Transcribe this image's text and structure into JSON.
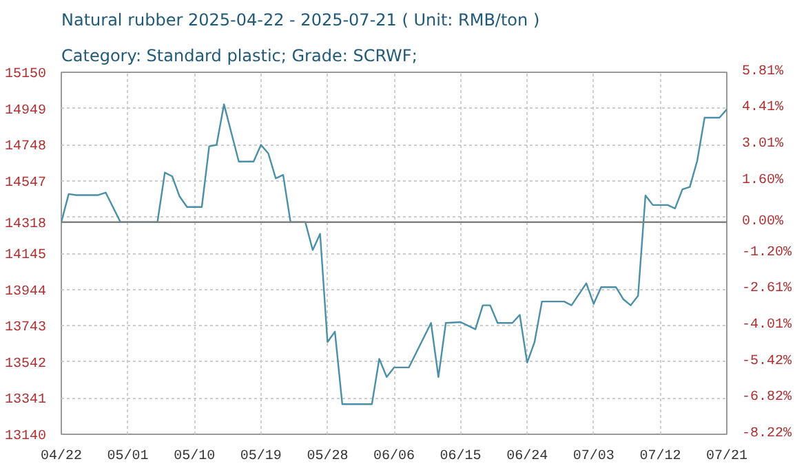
{
  "chart_data": {
    "type": "line",
    "title": "Natural rubber 2025-04-22 - 2025-07-21    ( Unit: RMB/ton )",
    "subtitle": "Category: Standard plastic; Grade: SCRWF;",
    "x": [
      "2025-04-22",
      "2025-04-23",
      "2025-04-24",
      "2025-04-27",
      "2025-04-28",
      "2025-04-30",
      "2025-05-05",
      "2025-05-06",
      "2025-05-07",
      "2025-05-08",
      "2025-05-09",
      "2025-05-11",
      "2025-05-12",
      "2025-05-13",
      "2025-05-14",
      "2025-05-16",
      "2025-05-18",
      "2025-05-19",
      "2025-05-20",
      "2025-05-21",
      "2025-05-22",
      "2025-05-23",
      "2025-05-25",
      "2025-05-26",
      "2025-05-27",
      "2025-05-28",
      "2025-05-29",
      "2025-05-30",
      "2025-06-03",
      "2025-06-04",
      "2025-06-05",
      "2025-06-06",
      "2025-06-08",
      "2025-06-11",
      "2025-06-12",
      "2025-06-13",
      "2025-06-15",
      "2025-06-17",
      "2025-06-18",
      "2025-06-19",
      "2025-06-20",
      "2025-06-22",
      "2025-06-23",
      "2025-06-24",
      "2025-06-25",
      "2025-06-26",
      "2025-06-29",
      "2025-06-30",
      "2025-07-02",
      "2025-07-03",
      "2025-07-04",
      "2025-07-06",
      "2025-07-07",
      "2025-07-08",
      "2025-07-09",
      "2025-07-10",
      "2025-07-11",
      "2025-07-13",
      "2025-07-14",
      "2025-07-15",
      "2025-07-16",
      "2025-07-17",
      "2025-07-18",
      "2025-07-20",
      "2025-07-21"
    ],
    "series": [
      {
        "color": "#4a8fa8",
        "values": [
          14318,
          14474,
          14468,
          14468,
          14482,
          14318,
          14318,
          14593,
          14572,
          14460,
          14402,
          14402,
          14739,
          14747,
          14972,
          14654,
          14654,
          14747,
          14699,
          14561,
          14580,
          14318,
          14318,
          14163,
          14253,
          13652,
          13710,
          13307,
          13307,
          13559,
          13458,
          13511,
          13511,
          13758,
          13458,
          13758,
          13763,
          13723,
          13856,
          13856,
          13758,
          13758,
          13803,
          13538,
          13652,
          13877,
          13877,
          13856,
          13978,
          13864,
          13957,
          13957,
          13890,
          13856,
          13909,
          14466,
          14413,
          14413,
          14394,
          14500,
          14513,
          14659,
          14898,
          14898,
          14944
        ]
      }
    ],
    "xlim": [
      "2025-04-22",
      "2025-07-21"
    ],
    "xticks": [
      {
        "value": "2025-04-22",
        "label": "04/22"
      },
      {
        "value": "2025-05-01",
        "label": "05/01"
      },
      {
        "value": "2025-05-10",
        "label": "05/10"
      },
      {
        "value": "2025-05-19",
        "label": "05/19"
      },
      {
        "value": "2025-05-28",
        "label": "05/28"
      },
      {
        "value": "2025-06-06",
        "label": "06/06"
      },
      {
        "value": "2025-06-15",
        "label": "06/15"
      },
      {
        "value": "2025-06-24",
        "label": "06/24"
      },
      {
        "value": "2025-07-03",
        "label": "07/03"
      },
      {
        "value": "2025-07-12",
        "label": "07/12"
      },
      {
        "value": "2025-07-21",
        "label": "07/21"
      }
    ],
    "ylim": [
      13140,
      15150
    ],
    "yticks": [
      15150,
      14949,
      14748,
      14547,
      {
        "value": 14346,
        "label": null
      },
      14318,
      14145,
      13944,
      13743,
      13542,
      13341,
      13140
    ],
    "y2lim": [
      -8.23,
      5.81
    ],
    "y2ticks": [
      {
        "value": 5.81,
        "label": "5.81%"
      },
      {
        "value": 4.41,
        "label": "4.41%"
      },
      {
        "value": 3.01,
        "label": "3.01%"
      },
      {
        "value": 1.6,
        "label": "1.60%"
      },
      {
        "value": 0,
        "label": "0.00%"
      },
      {
        "value": -1.2,
        "label": "-1.20%"
      },
      {
        "value": -2.61,
        "label": "-2.61%"
      },
      {
        "value": -4.01,
        "label": "-4.01%"
      },
      {
        "value": -5.42,
        "label": "-5.42%"
      },
      {
        "value": -6.82,
        "label": "-6.82%"
      },
      {
        "value": -8.22,
        "label": "-8.22%"
      }
    ],
    "ref_lines": [
      {
        "axis": "y",
        "value": 14318,
        "color": "#808080",
        "line_style": "solid"
      }
    ],
    "grid": true,
    "marker": "none",
    "line_style": "solid"
  }
}
